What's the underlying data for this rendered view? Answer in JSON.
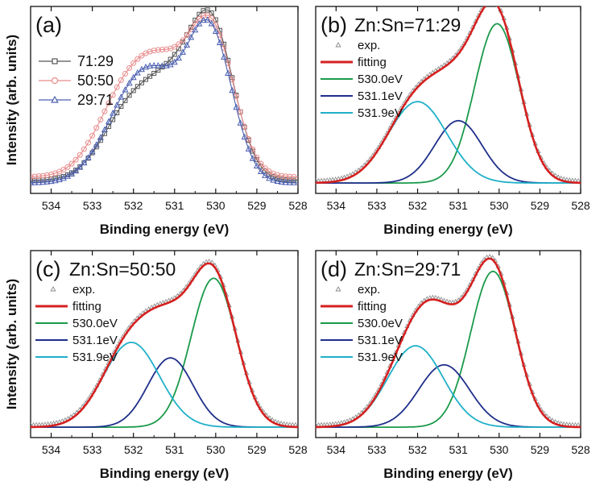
{
  "chart_data": [
    {
      "panel": "(a)",
      "type": "line",
      "title": "",
      "xlabel": "Binding energy (eV)",
      "ylabel": "Intensity (arb. units)",
      "xlim": [
        534.5,
        528
      ],
      "x_reversed": true,
      "xticks": [
        534,
        533,
        532,
        531,
        530,
        529,
        528
      ],
      "yticks": "none",
      "legend": "top-left",
      "series": [
        {
          "name": "71:29",
          "color": "#555555",
          "marker": "square",
          "kind": "markers+line"
        },
        {
          "name": "50:50",
          "color": "#e88a8a",
          "marker": "circle",
          "kind": "markers+line"
        },
        {
          "name": "29:71",
          "color": "#4b5fb0",
          "marker": "triangle",
          "kind": "markers+line"
        }
      ]
    },
    {
      "panel": "(b)",
      "type": "line",
      "title": "Zn:Sn=71:29",
      "xlabel": "Binding energy (eV)",
      "ylabel": "",
      "xlim": [
        534.5,
        528
      ],
      "x_reversed": true,
      "xticks": [
        534,
        533,
        532,
        531,
        530,
        529,
        528
      ],
      "legend": "top-left",
      "series": [
        {
          "name": "exp.",
          "color": "#888888",
          "kind": "markers"
        },
        {
          "name": "fitting",
          "color": "#d62020",
          "kind": "line"
        },
        {
          "name": "530.0eV",
          "color": "#1a9a4a",
          "kind": "line",
          "center": 530.05,
          "height": 0.92,
          "sigma": 0.55
        },
        {
          "name": "531.1eV",
          "color": "#1f2f8a",
          "kind": "line",
          "center": 531.0,
          "height": 0.36,
          "sigma": 0.58
        },
        {
          "name": "531.9eV",
          "color": "#1fb0c8",
          "kind": "line",
          "center": 532.0,
          "height": 0.47,
          "sigma": 0.72
        }
      ]
    },
    {
      "panel": "(c)",
      "type": "line",
      "title": "Zn:Sn=50:50",
      "xlabel": "Binding energy (eV)",
      "ylabel": "Intensity (arb. units)",
      "xlim": [
        534.5,
        528
      ],
      "x_reversed": true,
      "xticks": [
        534,
        533,
        532,
        531,
        530,
        529,
        528
      ],
      "legend": "top-left",
      "series": [
        {
          "name": "exp.",
          "color": "#888888",
          "kind": "markers"
        },
        {
          "name": "fitting",
          "color": "#d62020",
          "kind": "line"
        },
        {
          "name": "530.0eV",
          "color": "#1a9a4a",
          "kind": "line",
          "center": 530.05,
          "height": 0.86,
          "sigma": 0.55
        },
        {
          "name": "531.1eV",
          "color": "#1f2f8a",
          "kind": "line",
          "center": 531.1,
          "height": 0.4,
          "sigma": 0.55
        },
        {
          "name": "531.9eV",
          "color": "#1fb0c8",
          "kind": "line",
          "center": 532.05,
          "height": 0.49,
          "sigma": 0.68
        }
      ]
    },
    {
      "panel": "(d)",
      "type": "line",
      "title": "Zn:Sn=29:71",
      "xlabel": "Binding energy (eV)",
      "ylabel": "",
      "xlim": [
        534.5,
        528
      ],
      "x_reversed": true,
      "xticks": [
        534,
        533,
        532,
        531,
        530,
        529,
        528
      ],
      "legend": "top-left",
      "series": [
        {
          "name": "exp.",
          "color": "#888888",
          "kind": "markers"
        },
        {
          "name": "fitting",
          "color": "#d62020",
          "kind": "line"
        },
        {
          "name": "530.0eV",
          "color": "#1a9a4a",
          "kind": "line",
          "center": 530.15,
          "height": 0.9,
          "sigma": 0.55
        },
        {
          "name": "531.1eV",
          "color": "#1f2f8a",
          "kind": "line",
          "center": 531.35,
          "height": 0.36,
          "sigma": 0.62
        },
        {
          "name": "531.9eV",
          "color": "#1fb0c8",
          "kind": "line",
          "center": 532.05,
          "height": 0.47,
          "sigma": 0.68
        }
      ]
    }
  ]
}
